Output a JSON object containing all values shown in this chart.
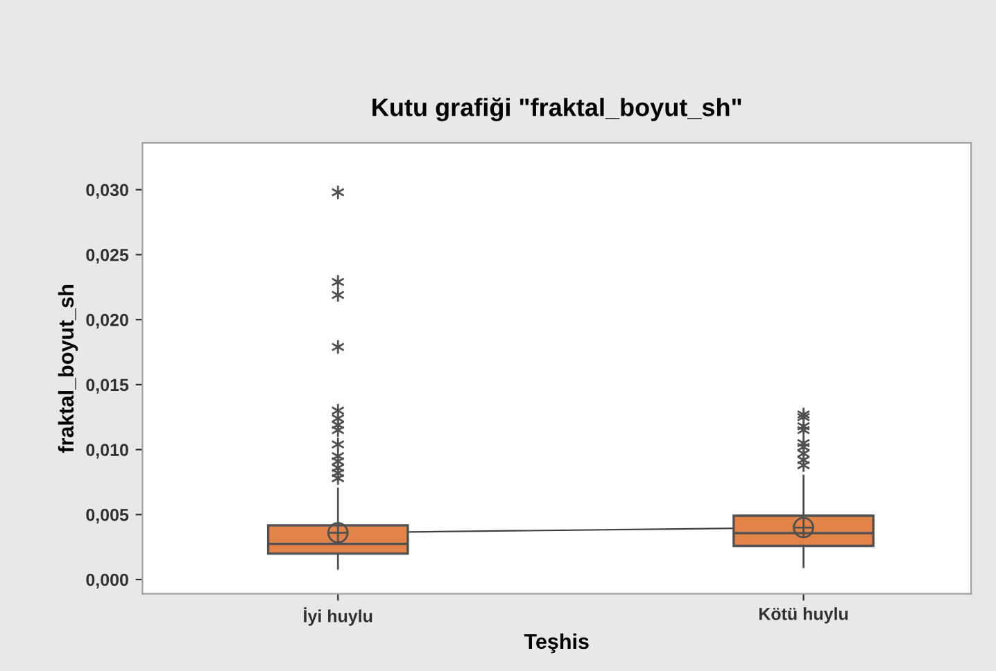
{
  "chart_data": {
    "type": "box",
    "title": "Kutu grafiği \"fraktal_boyut_sh\"",
    "xlabel": "Teşhis",
    "ylabel": "fraktal_boyut_sh",
    "categories": [
      "İyi huylu",
      "Kötü huylu"
    ],
    "boxes": [
      {
        "low": 0.00084,
        "q1": 0.002,
        "median": 0.00274,
        "q3": 0.00417,
        "high": 0.007,
        "mean": 0.0036,
        "outliers": [
          0.0298,
          0.0229,
          0.0219,
          0.0179,
          0.013,
          0.0124,
          0.0119,
          0.0115,
          0.0104,
          0.0095,
          0.0091,
          0.0086,
          0.0082,
          0.0078
        ]
      },
      {
        "low": 0.00096,
        "q1": 0.00259,
        "median": 0.00357,
        "q3": 0.00491,
        "high": 0.008,
        "mean": 0.004,
        "outliers": [
          0.0127,
          0.0125,
          0.0118,
          0.0115,
          0.0105,
          0.0102,
          0.0097,
          0.0092,
          0.0088
        ]
      }
    ],
    "color": "#e2834a",
    "series": [
      {
        "type": "line",
        "x": [
          "İyi huylu",
          "Kötü huylu"
        ],
        "values": [
          0.0036,
          0.004
        ],
        "color": "#404040"
      }
    ],
    "ylim": [
      -0.0011,
      0.0336
    ],
    "yticks": [
      {
        "value": 0.0,
        "label": "0,000"
      },
      {
        "value": 0.005,
        "label": "0,005"
      },
      {
        "value": 0.01,
        "label": "0,010"
      },
      {
        "value": 0.015,
        "label": "0,015"
      },
      {
        "value": 0.02,
        "label": "0,020"
      },
      {
        "value": 0.025,
        "label": "0,025"
      },
      {
        "value": 0.03,
        "label": "0,030"
      }
    ],
    "grid": false,
    "legend": false
  }
}
